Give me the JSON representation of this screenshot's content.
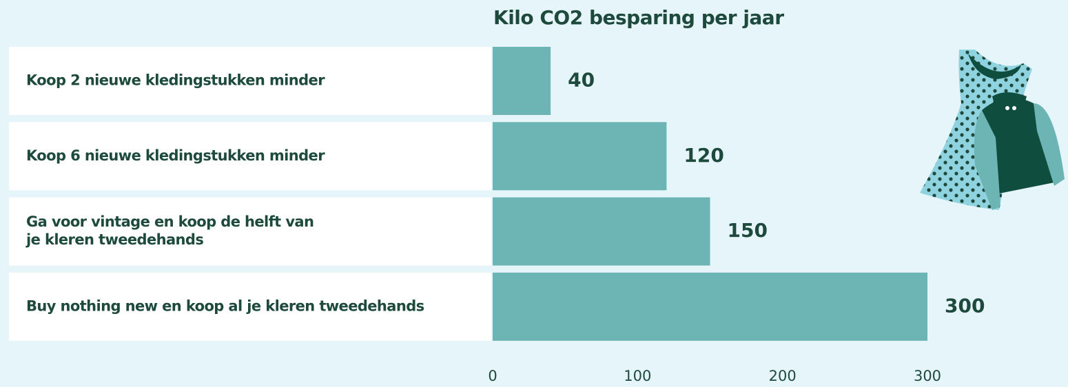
{
  "chart_data": {
    "type": "bar",
    "orientation": "horizontal",
    "title": "Kilo CO2 besparing per jaar",
    "categories": [
      "Koop 2 nieuwe kledingstukken minder",
      "Koop 6 nieuwe kledingstukken minder",
      "Ga voor vintage en koop de helft van\nje kleren tweedehands",
      "Buy nothing new en koop al je kleren tweedehands"
    ],
    "values": [
      40,
      120,
      150,
      300
    ],
    "color": "#6db5b5",
    "xlim": [
      0,
      300
    ],
    "xticks": [
      0,
      100,
      200,
      300
    ]
  }
}
